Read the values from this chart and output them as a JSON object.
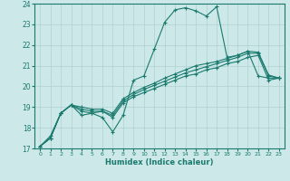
{
  "xlabel": "Humidex (Indice chaleur)",
  "xlim": [
    -0.5,
    23.5
  ],
  "ylim": [
    17,
    24
  ],
  "yticks": [
    17,
    18,
    19,
    20,
    21,
    22,
    23,
    24
  ],
  "xticks": [
    0,
    1,
    2,
    3,
    4,
    5,
    6,
    7,
    8,
    9,
    10,
    11,
    12,
    13,
    14,
    15,
    16,
    17,
    18,
    19,
    20,
    21,
    22,
    23
  ],
  "bg_color": "#cce8e8",
  "line_color": "#1a7a6e",
  "grid_color": "#b0d0d0",
  "lines": [
    {
      "x": [
        0,
        1,
        2,
        3,
        4,
        5,
        6,
        7,
        8,
        9,
        10,
        11,
        12,
        13,
        14,
        15,
        16,
        17,
        18,
        19,
        20,
        21,
        22,
        23
      ],
      "y": [
        17.1,
        17.6,
        18.7,
        19.1,
        18.6,
        18.7,
        18.5,
        17.8,
        18.6,
        20.3,
        20.5,
        21.8,
        23.1,
        23.7,
        23.8,
        23.65,
        23.4,
        23.85,
        21.4,
        21.5,
        21.7,
        20.5,
        20.4,
        20.4
      ]
    },
    {
      "x": [
        0,
        1,
        2,
        3,
        4,
        5,
        6,
        7,
        8,
        9,
        10,
        11,
        12,
        13,
        14,
        15,
        16,
        17,
        18,
        19,
        20,
        21,
        22,
        23
      ],
      "y": [
        17.1,
        17.5,
        18.7,
        19.1,
        18.8,
        18.7,
        18.8,
        18.5,
        19.2,
        19.5,
        19.7,
        19.9,
        20.1,
        20.3,
        20.5,
        20.6,
        20.8,
        20.9,
        21.1,
        21.2,
        21.4,
        21.5,
        20.3,
        20.4
      ]
    },
    {
      "x": [
        0,
        1,
        2,
        3,
        4,
        5,
        6,
        7,
        8,
        9,
        10,
        11,
        12,
        13,
        14,
        15,
        16,
        17,
        18,
        19,
        20,
        21,
        22,
        23
      ],
      "y": [
        17.1,
        17.5,
        18.7,
        19.1,
        18.9,
        18.8,
        18.8,
        18.6,
        19.3,
        19.6,
        19.85,
        20.05,
        20.25,
        20.45,
        20.65,
        20.8,
        20.95,
        21.1,
        21.25,
        21.4,
        21.6,
        21.6,
        20.5,
        20.4
      ]
    },
    {
      "x": [
        0,
        1,
        2,
        3,
        4,
        5,
        6,
        7,
        8,
        9,
        10,
        11,
        12,
        13,
        14,
        15,
        16,
        17,
        18,
        19,
        20,
        21,
        22,
        23
      ],
      "y": [
        17.1,
        17.5,
        18.7,
        19.1,
        19.0,
        18.9,
        18.9,
        18.7,
        19.4,
        19.7,
        19.95,
        20.15,
        20.4,
        20.6,
        20.8,
        21.0,
        21.1,
        21.2,
        21.35,
        21.5,
        21.7,
        21.65,
        20.55,
        20.4
      ]
    }
  ]
}
